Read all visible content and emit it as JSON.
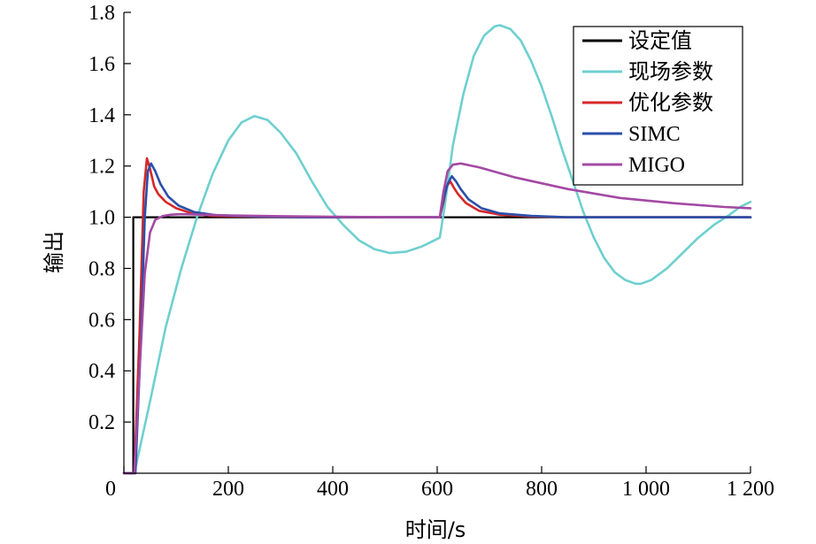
{
  "chart_data": {
    "type": "line",
    "title": "",
    "xlabel": "时间/s",
    "ylabel": "输出",
    "xlim": [
      0,
      1200
    ],
    "ylim": [
      0,
      1.8
    ],
    "xticks": [
      0,
      200,
      400,
      600,
      800,
      1000,
      1200
    ],
    "xtick_labels": [
      "0",
      "200",
      "400",
      "600",
      "800",
      "1 000",
      "1 200"
    ],
    "yticks": [
      0.2,
      0.4,
      0.6,
      0.8,
      1.0,
      1.2,
      1.4,
      1.6,
      1.8
    ],
    "ytick_labels": [
      "0.2",
      "0.4",
      "0.6",
      "0.8",
      "1.0",
      "1.2",
      "1.4",
      "1.6",
      "1.8"
    ],
    "grid": false,
    "legend_position": "top-right",
    "series": [
      {
        "name": "设定值",
        "color": "#000000",
        "x": [
          0,
          18,
          18,
          1200
        ],
        "y": [
          0,
          0,
          1.0,
          1.0
        ]
      },
      {
        "name": "现场参数",
        "color": "#6fcfcf",
        "x": [
          0,
          20,
          50,
          80,
          110,
          140,
          170,
          200,
          225,
          250,
          275,
          300,
          330,
          360,
          390,
          420,
          450,
          480,
          510,
          540,
          570,
          605,
          615,
          630,
          650,
          670,
          690,
          710,
          720,
          740,
          760,
          780,
          800,
          820,
          840,
          860,
          880,
          900,
          920,
          940,
          960,
          980,
          990,
          1010,
          1040,
          1070,
          1100,
          1130,
          1160,
          1180,
          1200
        ],
        "y": [
          0,
          0,
          0.28,
          0.57,
          0.8,
          1.0,
          1.17,
          1.3,
          1.37,
          1.395,
          1.38,
          1.33,
          1.25,
          1.14,
          1.04,
          0.97,
          0.91,
          0.875,
          0.86,
          0.865,
          0.885,
          0.92,
          1.05,
          1.28,
          1.48,
          1.63,
          1.71,
          1.745,
          1.75,
          1.735,
          1.69,
          1.61,
          1.51,
          1.39,
          1.26,
          1.14,
          1.02,
          0.92,
          0.84,
          0.785,
          0.755,
          0.74,
          0.74,
          0.755,
          0.8,
          0.86,
          0.92,
          0.97,
          1.01,
          1.04,
          1.06
        ]
      },
      {
        "name": "优化参数",
        "color": "#d62728",
        "x": [
          0,
          20,
          30,
          38,
          44,
          50,
          58,
          66,
          80,
          100,
          130,
          170,
          250,
          350,
          450,
          550,
          605,
          612,
          618,
          625,
          632,
          640,
          655,
          680,
          720,
          780,
          850,
          950,
          1200
        ],
        "y": [
          0,
          0,
          0.55,
          1.1,
          1.23,
          1.19,
          1.12,
          1.09,
          1.06,
          1.035,
          1.015,
          1.005,
          1.002,
          1.0,
          1.0,
          1.0,
          1.0,
          1.06,
          1.12,
          1.14,
          1.115,
          1.09,
          1.055,
          1.025,
          1.01,
          1.003,
          1.0,
          1.0,
          1.0
        ]
      },
      {
        "name": "SIMC",
        "color": "#2a4fa8",
        "x": [
          0,
          22,
          32,
          40,
          46,
          52,
          60,
          70,
          85,
          105,
          135,
          175,
          250,
          350,
          450,
          550,
          605,
          612,
          620,
          628,
          636,
          645,
          660,
          685,
          720,
          780,
          850,
          950,
          1200
        ],
        "y": [
          0,
          0,
          0.5,
          1.0,
          1.18,
          1.21,
          1.18,
          1.13,
          1.08,
          1.045,
          1.02,
          1.008,
          1.003,
          1.0,
          1.0,
          1.0,
          1.0,
          1.07,
          1.13,
          1.16,
          1.14,
          1.11,
          1.07,
          1.035,
          1.015,
          1.005,
          1.0,
          1.0,
          1.0
        ]
      },
      {
        "name": "MIGO",
        "color": "#a349a4",
        "x": [
          0,
          20,
          30,
          40,
          50,
          60,
          75,
          90,
          110,
          150,
          200,
          300,
          400,
          500,
          605,
          612,
          620,
          630,
          645,
          680,
          750,
          850,
          950,
          1050,
          1150,
          1200
        ],
        "y": [
          0,
          0,
          0.4,
          0.78,
          0.94,
          0.99,
          1.005,
          1.01,
          1.012,
          1.01,
          1.007,
          1.004,
          1.002,
          1.0,
          1.0,
          1.1,
          1.18,
          1.205,
          1.21,
          1.195,
          1.155,
          1.11,
          1.075,
          1.055,
          1.04,
          1.035
        ]
      }
    ]
  }
}
